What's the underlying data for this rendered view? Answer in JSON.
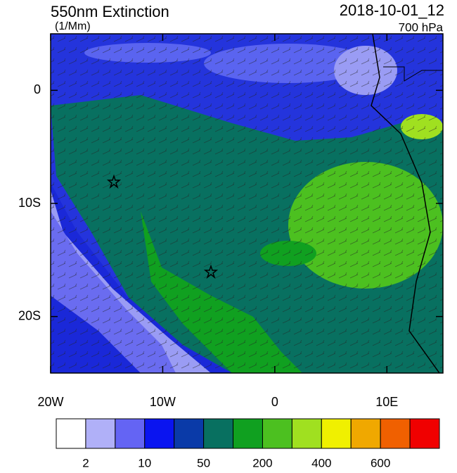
{
  "map": {
    "title": "550nm Extinction",
    "units": "(1/Mm)",
    "time": "2018-10-01_12",
    "level": "700 hPa",
    "xlim": [
      -20,
      15
    ],
    "ylim": [
      -25,
      5
    ],
    "xticks": [
      {
        "value": -20,
        "label": "20W"
      },
      {
        "value": -10,
        "label": "10W"
      },
      {
        "value": 0,
        "label": "0"
      },
      {
        "value": 10,
        "label": "10E"
      }
    ],
    "yticks": [
      {
        "value": 0,
        "label": "0"
      },
      {
        "value": -10,
        "label": "10S"
      },
      {
        "value": -20,
        "label": "20S"
      }
    ]
  },
  "colorbar": {
    "colors": [
      "#ffffff",
      "#b0b0f8",
      "#6464f4",
      "#0a14f0",
      "#0a3aa8",
      "#087060",
      "#10a020",
      "#4cc020",
      "#a0e020",
      "#f0f000",
      "#f0a800",
      "#f06000",
      "#f00000"
    ],
    "labels": [
      "2",
      "10",
      "50",
      "200",
      "400",
      "600"
    ]
  }
}
